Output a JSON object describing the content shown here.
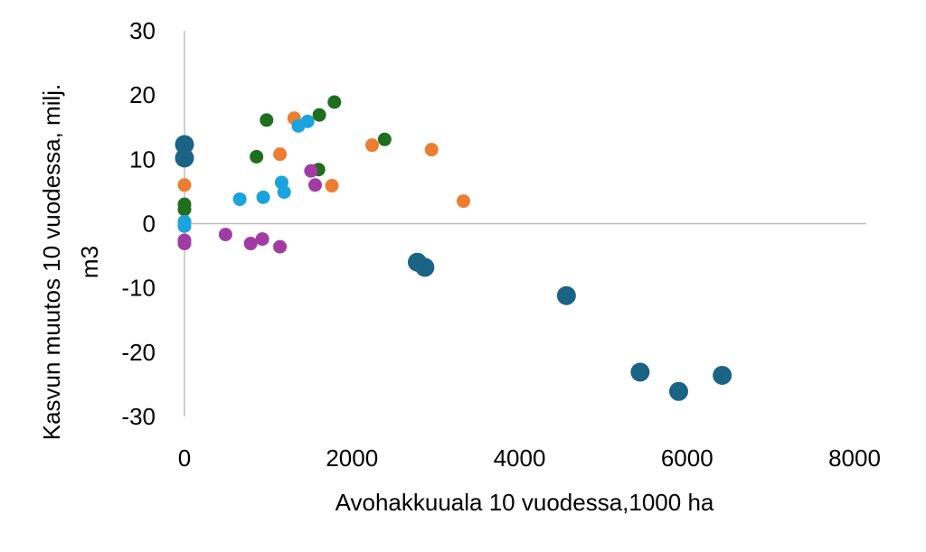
{
  "chart_data": {
    "type": "scatter",
    "title": "",
    "xlabel": "Avohakkuuala 10 vuodessa,1000 ha",
    "ylabel_line1": "Kasvun muutos 10 vuodessa, milj.",
    "ylabel_line2": "m3",
    "xlim": [
      0,
      8000
    ],
    "ylim": [
      -30,
      30
    ],
    "x_ticks": [
      0,
      2000,
      4000,
      6000,
      8000
    ],
    "y_ticks": [
      30,
      20,
      10,
      0,
      -10,
      -20,
      -30
    ],
    "grid": false,
    "legend": "none",
    "series": [
      {
        "color": "#1b6384",
        "marker": "large",
        "points": [
          [
            0,
            12.3
          ],
          [
            0,
            10.2
          ],
          [
            2780,
            -6.0
          ],
          [
            2870,
            -6.8
          ],
          [
            4560,
            -11.2
          ],
          [
            5440,
            -23.1
          ],
          [
            5900,
            -26.1
          ],
          [
            6420,
            -23.6
          ]
        ]
      },
      {
        "color": "#ed7d31",
        "marker": "small",
        "points": [
          [
            0,
            6.0
          ],
          [
            1140,
            10.8
          ],
          [
            1310,
            16.4
          ],
          [
            1760,
            5.9
          ],
          [
            2240,
            12.2
          ],
          [
            2950,
            11.5
          ],
          [
            3330,
            3.5
          ]
        ]
      },
      {
        "color": "#1e6e1e",
        "marker": "small",
        "points": [
          [
            0,
            3.0
          ],
          [
            0,
            2.2
          ],
          [
            860,
            10.4
          ],
          [
            980,
            16.1
          ],
          [
            1600,
            8.4
          ],
          [
            1610,
            16.9
          ],
          [
            1790,
            18.9
          ],
          [
            2390,
            13.1
          ]
        ]
      },
      {
        "color": "#1aa3dd",
        "marker": "small",
        "points": [
          [
            0,
            0.3
          ],
          [
            0,
            -0.4
          ],
          [
            660,
            3.8
          ],
          [
            940,
            4.1
          ],
          [
            1160,
            6.4
          ],
          [
            1190,
            4.9
          ],
          [
            1360,
            15.2
          ],
          [
            1470,
            15.9
          ]
        ]
      },
      {
        "color": "#a23ca4",
        "marker": "small",
        "points": [
          [
            0,
            -2.6
          ],
          [
            0,
            -3.1
          ],
          [
            490,
            -1.7
          ],
          [
            790,
            -3.1
          ],
          [
            930,
            -2.4
          ],
          [
            1140,
            -3.6
          ],
          [
            1510,
            8.2
          ],
          [
            1560,
            6.0
          ]
        ]
      }
    ]
  }
}
